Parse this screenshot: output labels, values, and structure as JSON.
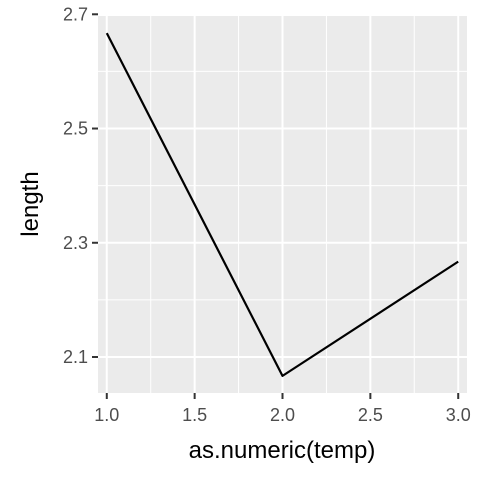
{
  "chart_data": {
    "type": "line",
    "xlabel": "as.numeric(temp)",
    "ylabel": "length",
    "x": [
      1.0,
      2.0,
      3.0
    ],
    "series": [
      {
        "values": [
          2.667,
          2.067,
          2.267
        ]
      }
    ],
    "xlim": [
      0.95,
      3.05
    ],
    "ylim": [
      2.037,
      2.697
    ],
    "x_ticks": [
      "1.0",
      "1.5",
      "2.0",
      "2.5",
      "3.0"
    ],
    "y_ticks": [
      "2.1",
      "2.3",
      "2.5",
      "2.7"
    ],
    "grid": true,
    "colors": {
      "panel": "#ebebeb",
      "grid": "#ffffff",
      "line": "#000000",
      "tick_text": "#4d4d4d",
      "tick_mark": "#333333"
    }
  }
}
